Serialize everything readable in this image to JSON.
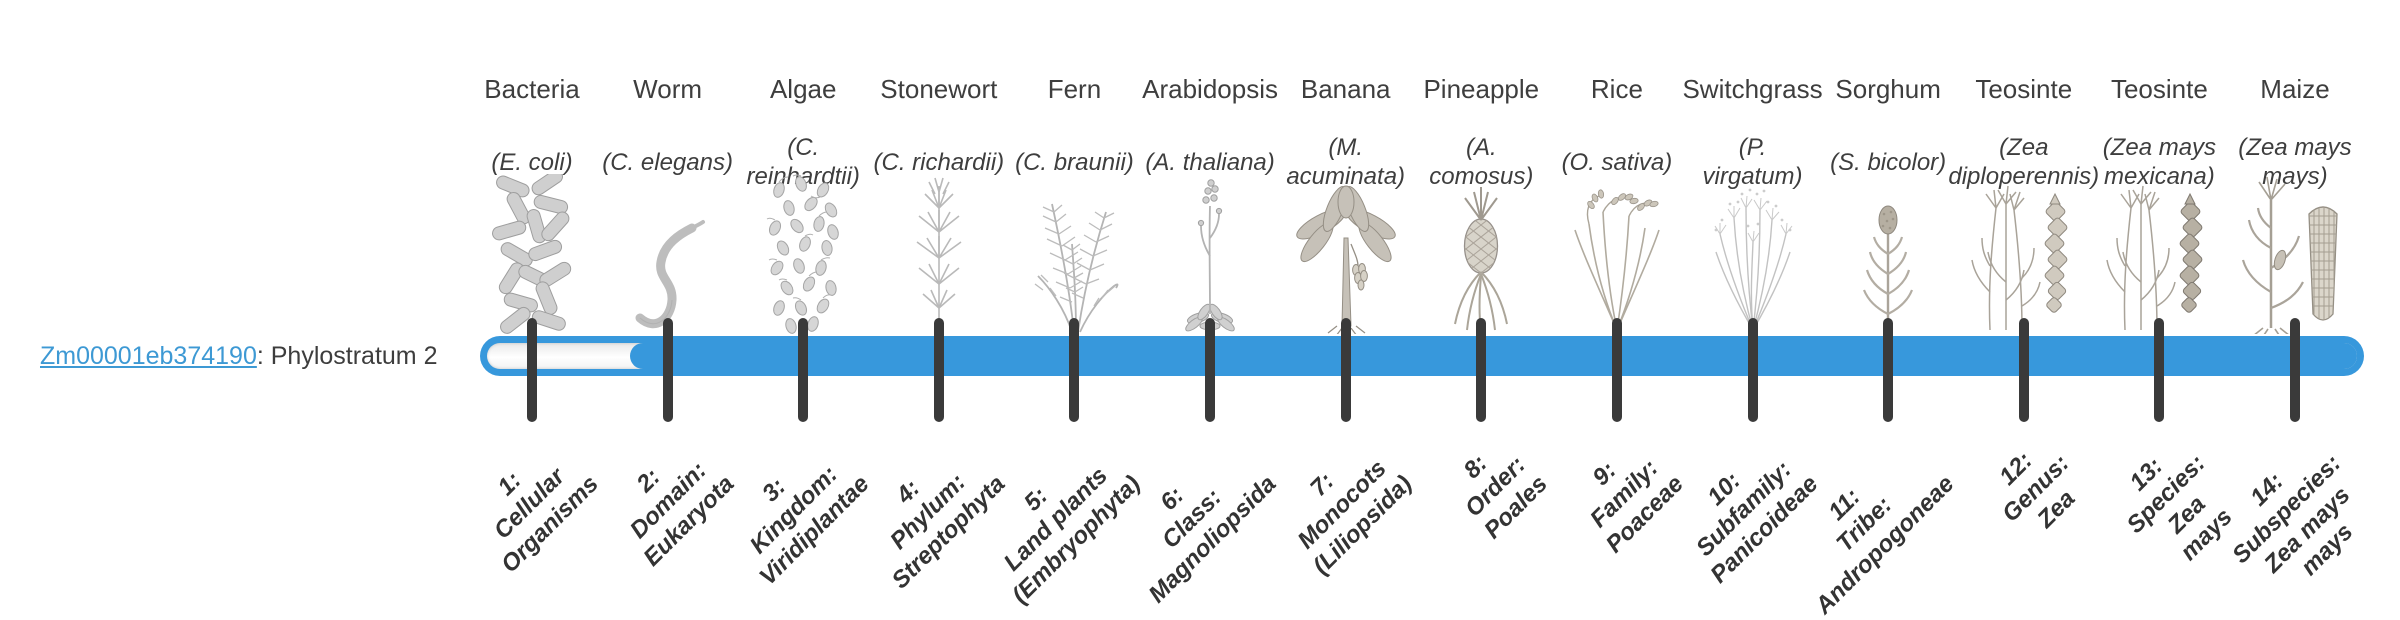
{
  "gene": {
    "id": "Zm00001eb374190",
    "suffix": ": Phylostratum 2",
    "phylostratum": 2
  },
  "colors": {
    "bar_blue": "#3798dc",
    "link_blue": "#3d99d4",
    "tick_color": "#3a3a3a",
    "icon_gray": "#c6c1b8",
    "icon_stroke": "#958f85"
  },
  "bar": {
    "total_strata": 14,
    "filled_from_stratum": 2
  },
  "strata": [
    {
      "common": "Bacteria",
      "sci": "(E. coli)",
      "tick_label": "1:\nCellular\nOrganisms",
      "icon": "bacteria"
    },
    {
      "common": "Worm",
      "sci": "(C. elegans)",
      "tick_label": "2:\nDomain:\nEukaryota",
      "icon": "worm"
    },
    {
      "common": "Algae",
      "sci": "(C.\nreinhardtii)",
      "tick_label": "3:\nKingdom:\nViridiplantae",
      "icon": "algae"
    },
    {
      "common": "Stonewort",
      "sci": "(C. richardii)",
      "tick_label": "4:\nPhylum:\nStreptophyta",
      "icon": "stonewort"
    },
    {
      "common": "Fern",
      "sci": "(C. braunii)",
      "tick_label": "5:\nLand plants\n(Embryophyta)",
      "icon": "fern"
    },
    {
      "common": "Arabidopsis",
      "sci": "(A. thaliana)",
      "tick_label": "6:\nClass:\nMagnoliopsida",
      "icon": "arabidopsis"
    },
    {
      "common": "Banana",
      "sci": "(M.\nacuminata)",
      "tick_label": "7:\nMonocots\n(Liliopsida)",
      "icon": "banana"
    },
    {
      "common": "Pineapple",
      "sci": "(A.\ncomosus)",
      "tick_label": "8:\nOrder:\nPoales",
      "icon": "pineapple"
    },
    {
      "common": "Rice",
      "sci": "(O. sativa)",
      "tick_label": "9:\nFamily:\nPoaceae",
      "icon": "rice"
    },
    {
      "common": "Switchgrass",
      "sci": "(P.\nvirgatum)",
      "tick_label": "10:\nSubfamily:\nPanicoideae",
      "icon": "switchgrass"
    },
    {
      "common": "Sorghum",
      "sci": "(S. bicolor)",
      "tick_label": "11:\nTribe:\nAndropogoneae",
      "icon": "sorghum"
    },
    {
      "common": "Teosinte",
      "sci": "(Zea\ndiploperennis)",
      "tick_label": "12:\nGenus:\nZea",
      "icon": "teosinte-diploperennis"
    },
    {
      "common": "Teosinte",
      "sci": "(Zea mays\nmexicana)",
      "tick_label": "13:\nSpecies:\nZea\nmays",
      "icon": "teosinte-mexicana"
    },
    {
      "common": "Maize",
      "sci": "(Zea mays\nmays)",
      "tick_label": "14:\nSubspecies:\nZea mays\nmays",
      "icon": "maize"
    }
  ]
}
